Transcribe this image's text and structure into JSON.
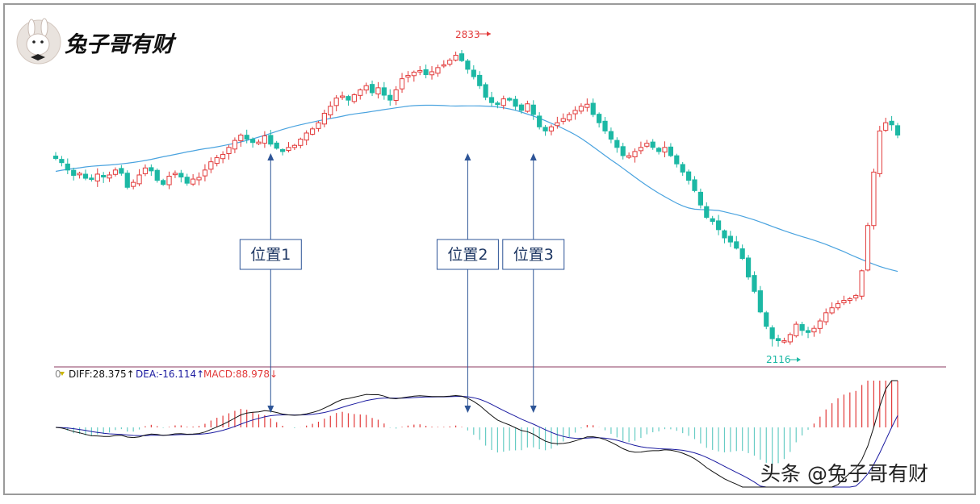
{
  "brand": {
    "name": "兔子哥有财",
    "watermark": "头条 @兔子哥有财"
  },
  "colors": {
    "up": "#e23a3a",
    "down": "#1cb8a4",
    "ma": "#4aa3df",
    "diff": "#111111",
    "dea": "#1a1aa0",
    "macd_pos": "#e23a3a",
    "macd_neg": "#66ccc4",
    "border": "#9a9a9a",
    "divider": "#8b3a62",
    "callout_border": "#2e5597",
    "arrow": "#2e5597",
    "watermark": "#222222"
  },
  "annotations": {
    "high": "2833",
    "low": "2116",
    "callouts": [
      {
        "label": "位置1",
        "bar": 36
      },
      {
        "label": "位置2",
        "bar": 69
      },
      {
        "label": "位置3",
        "bar": 80
      }
    ]
  },
  "indicator": {
    "diff_label": "DIFF:28.375↑",
    "dea_label": "DEA:-16.114↑",
    "macd_label": "MACD:88.978↓"
  },
  "chart_data": {
    "type": "candlestick",
    "price_range": [
      2080,
      2880
    ],
    "high_value": 2833,
    "low_value": 2116,
    "closes": [
      2573,
      2563,
      2545,
      2532,
      2537,
      2525,
      2522,
      2535,
      2528,
      2533,
      2545,
      2537,
      2503,
      2515,
      2533,
      2550,
      2543,
      2520,
      2510,
      2530,
      2537,
      2528,
      2513,
      2523,
      2527,
      2545,
      2565,
      2575,
      2583,
      2600,
      2617,
      2630,
      2620,
      2612,
      2613,
      2628,
      2608,
      2598,
      2590,
      2600,
      2605,
      2620,
      2635,
      2645,
      2660,
      2683,
      2700,
      2720,
      2725,
      2715,
      2728,
      2740,
      2750,
      2733,
      2745,
      2727,
      2715,
      2740,
      2767,
      2775,
      2783,
      2787,
      2777,
      2784,
      2794,
      2801,
      2812,
      2824,
      2811,
      2790,
      2772,
      2750,
      2722,
      2709,
      2704,
      2718,
      2715,
      2700,
      2690,
      2706,
      2680,
      2650,
      2640,
      2650,
      2660,
      2670,
      2680,
      2690,
      2700,
      2705,
      2680,
      2660,
      2640,
      2620,
      2600,
      2580,
      2580,
      2590,
      2600,
      2610,
      2600,
      2590,
      2600,
      2580,
      2560,
      2540,
      2520,
      2495,
      2460,
      2430,
      2420,
      2400,
      2380,
      2370,
      2355,
      2330,
      2285,
      2250,
      2200,
      2165,
      2135,
      2130,
      2130,
      2145,
      2170,
      2155,
      2150,
      2160,
      2178,
      2198,
      2210,
      2220,
      2228,
      2232,
      2240,
      2300,
      2410,
      2540,
      2640,
      2660,
      2655,
      2630
    ]
  }
}
